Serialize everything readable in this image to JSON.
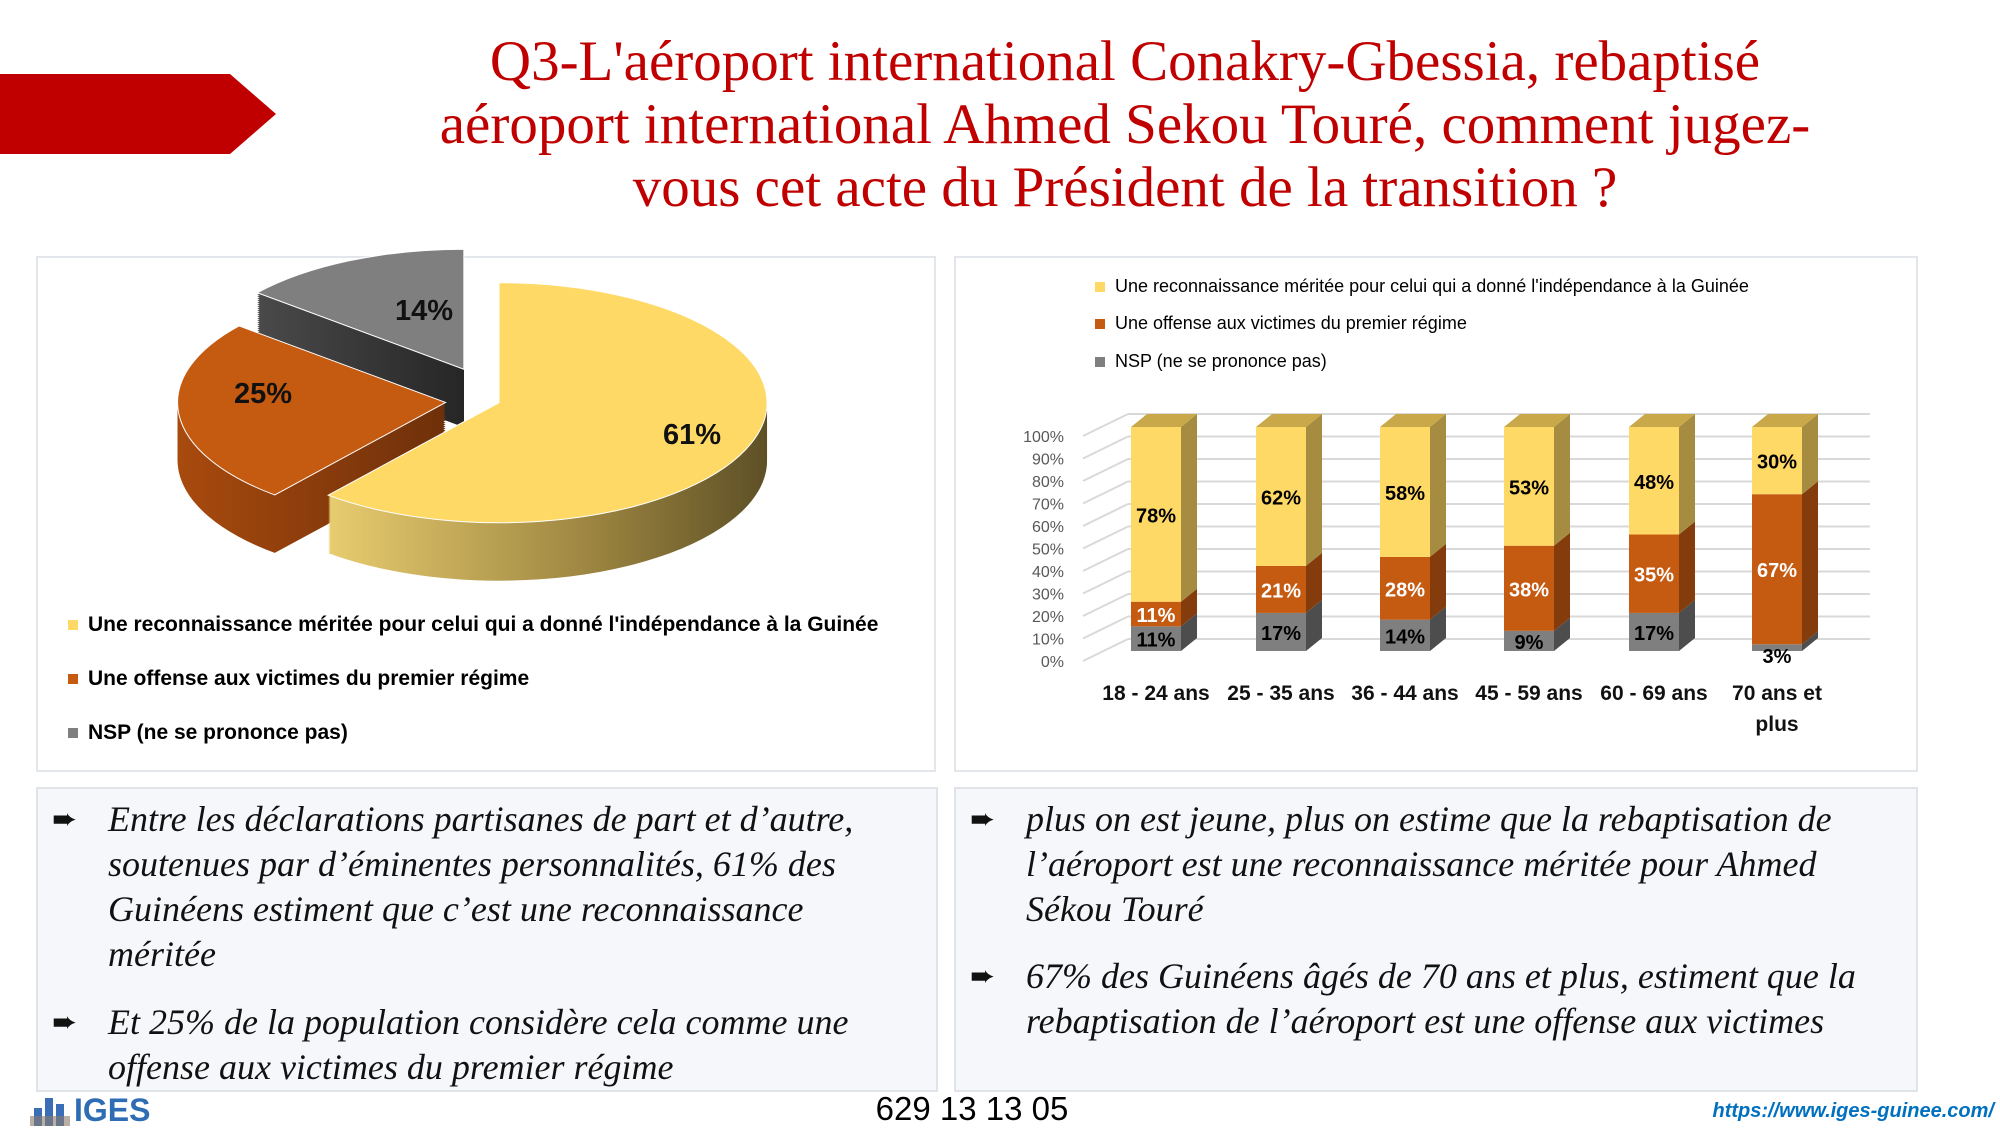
{
  "title_lines": [
    "Q3-L'aéroport international Conakry-Gbessia, rebaptisé",
    "aéroport international Ahmed Sekou Touré, comment jugez-",
    "vous cet acte du Président de la transition ?"
  ],
  "colors": {
    "accent": "#c00000",
    "yellow": "#FFD966",
    "orange": "#C55A11",
    "gray": "#7F7F7F"
  },
  "chart_data": [
    {
      "type": "pie",
      "title": "",
      "slices": [
        {
          "label": "Une reconnaissance méritée pour celui qui a donné l'indépendance à la Guinée",
          "value": 61,
          "value_label": "61%",
          "color": "#FFD966"
        },
        {
          "label": "Une offense aux victimes du premier régime",
          "value": 25,
          "value_label": "25%",
          "color": "#C55A11"
        },
        {
          "label": "NSP (ne se prononce pas)",
          "value": 14,
          "value_label": "14%",
          "color": "#7F7F7F"
        }
      ],
      "legend_placement": "bottom"
    },
    {
      "type": "bar",
      "stacked": true,
      "categories": [
        "18 - 24 ans",
        "25 - 35 ans",
        "36 - 44 ans",
        "45 - 59 ans",
        "60 - 69 ans",
        "70 ans et plus"
      ],
      "category_lines": [
        [
          "18 - 24 ans"
        ],
        [
          "25 - 35 ans"
        ],
        [
          "36 - 44 ans"
        ],
        [
          "45 - 59 ans"
        ],
        [
          "60 - 69 ans"
        ],
        [
          "70 ans et",
          "plus"
        ]
      ],
      "series": [
        {
          "name": "Une reconnaissance méritée pour celui qui a donné l'indépendance à la Guinée",
          "values": [
            78,
            62,
            58,
            53,
            48,
            30
          ],
          "color": "#FFD966"
        },
        {
          "name": "Une offense aux victimes du premier régime",
          "values": [
            11,
            21,
            28,
            38,
            35,
            67
          ],
          "color": "#C55A11"
        },
        {
          "name": "NSP (ne se prononce pas)",
          "values": [
            11,
            17,
            14,
            9,
            17,
            3
          ],
          "color": "#7F7F7F"
        }
      ],
      "yticks": [
        "0%",
        "10%",
        "20%",
        "30%",
        "40%",
        "50%",
        "60%",
        "70%",
        "80%",
        "90%",
        "100%"
      ],
      "ylim": [
        0,
        100
      ],
      "grid": true,
      "legend_placement": "top"
    }
  ],
  "left_text": [
    "Entre les déclarations partisanes de part et d’autre, soutenues par d’éminentes personnalités, 61% des Guinéens estiment que c’est une reconnaissance méritée",
    "Et 25% de la population considère cela comme une offense aux victimes du premier régime"
  ],
  "right_text": [
    "plus on est jeune, plus on estime que la rebaptisation de l’aéroport est une reconnaissance méritée pour Ahmed Sékou Touré",
    "67% des Guinéens âgés de 70 ans et plus, estiment que la rebaptisation de l’aéroport est une offense aux victimes"
  ],
  "bullet_icon": "arrow-bullet-icon",
  "footer": {
    "logo": "IGES",
    "phone": "629 13 13 05",
    "url": "https://www.iges-guinee.com/"
  }
}
